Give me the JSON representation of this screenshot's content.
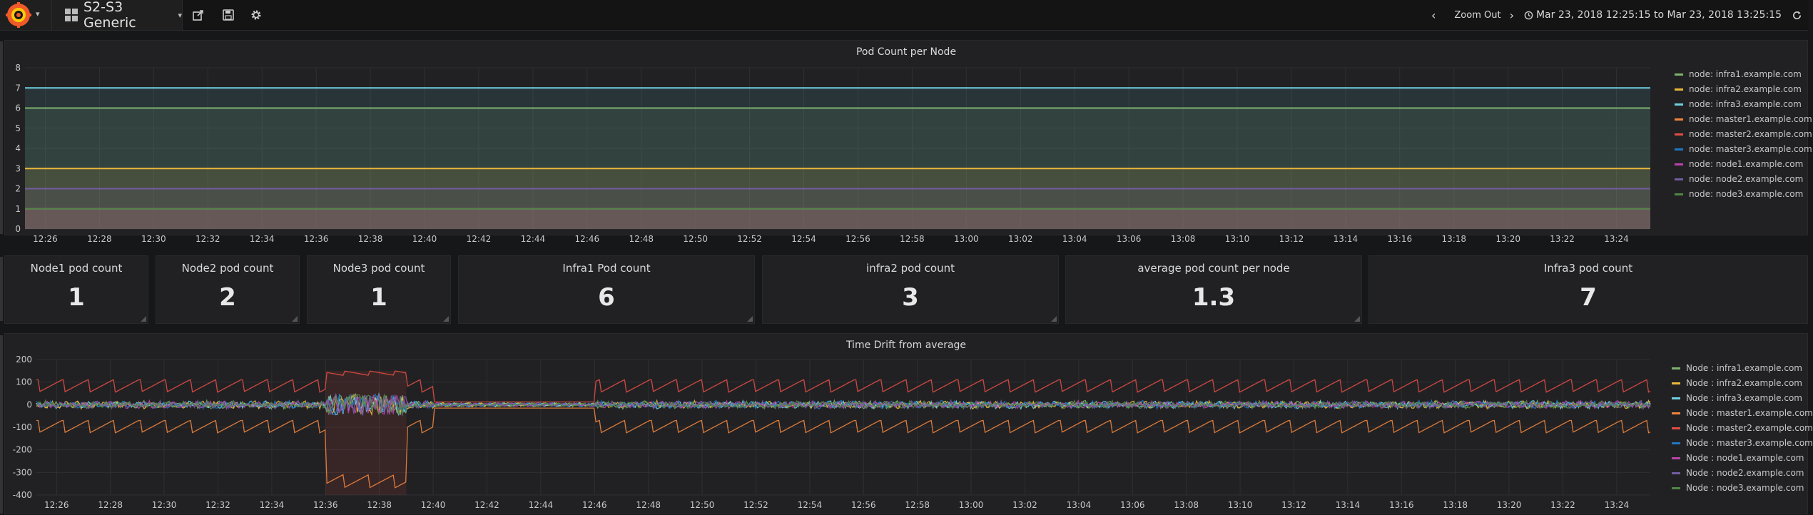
{
  "navbar": {
    "dashboard_title": "S2-S3 Generic",
    "zoom_out_label": "Zoom Out",
    "time_range": "Mar 23, 2018 12:25:15 to Mar 23, 2018 13:25:15"
  },
  "colors": {
    "green": "#7eb26d",
    "yellow": "#eab839",
    "cyan": "#6ed0e0",
    "orange": "#ef843c",
    "red": "#e24d42",
    "blue": "#1f78c1",
    "magenta": "#ba43a9",
    "purple": "#705da0",
    "darkgreen": "#508642"
  },
  "pod_panel": {
    "title": "Pod Count per Node",
    "legend": [
      {
        "label": "node: infra1.example.com",
        "color": "#7eb26d"
      },
      {
        "label": "node: infra2.example.com",
        "color": "#eab839"
      },
      {
        "label": "node: infra3.example.com",
        "color": "#6ed0e0"
      },
      {
        "label": "node: master1.example.com",
        "color": "#ef843c"
      },
      {
        "label": "node: master2.example.com",
        "color": "#e24d42"
      },
      {
        "label": "node: master3.example.com",
        "color": "#1f78c1"
      },
      {
        "label": "node: node1.example.com",
        "color": "#ba43a9"
      },
      {
        "label": "node: node2.example.com",
        "color": "#705da0"
      },
      {
        "label": "node: node3.example.com",
        "color": "#508642"
      }
    ]
  },
  "stats": [
    {
      "title": "Node1 pod count",
      "value": "1"
    },
    {
      "title": "Node2 pod count",
      "value": "2"
    },
    {
      "title": "Node3 pod count",
      "value": "1"
    },
    {
      "title": "Infra1 Pod count",
      "value": "6"
    },
    {
      "title": "infra2 pod count",
      "value": "3"
    },
    {
      "title": "average pod count per node",
      "value": "1.3"
    },
    {
      "title": "Infra3 pod count",
      "value": "7"
    }
  ],
  "drift_panel": {
    "title": "Time Drift from average",
    "legend": [
      {
        "label": "Node : infra1.example.com",
        "color": "#7eb26d"
      },
      {
        "label": "Node : infra2.example.com",
        "color": "#eab839"
      },
      {
        "label": "Node : infra3.example.com",
        "color": "#6ed0e0"
      },
      {
        "label": "Node : master1.example.com",
        "color": "#ef843c"
      },
      {
        "label": "Node : master2.example.com",
        "color": "#e24d42"
      },
      {
        "label": "Node : master3.example.com",
        "color": "#1f78c1"
      },
      {
        "label": "Node : node1.example.com",
        "color": "#ba43a9"
      },
      {
        "label": "Node : node2.example.com",
        "color": "#705da0"
      },
      {
        "label": "Node : node3.example.com",
        "color": "#508642"
      }
    ]
  },
  "chart_data": [
    {
      "type": "area",
      "title": "Pod Count per Node",
      "ylim": [
        0,
        8
      ],
      "y_ticks": [
        "0",
        "1",
        "2",
        "3",
        "4",
        "5",
        "6",
        "7",
        "8"
      ],
      "x_ticks": [
        "12:26",
        "12:28",
        "12:30",
        "12:32",
        "12:34",
        "12:36",
        "12:38",
        "12:40",
        "12:42",
        "12:44",
        "12:46",
        "12:48",
        "12:50",
        "12:52",
        "12:54",
        "12:56",
        "12:58",
        "13:00",
        "13:02",
        "13:04",
        "13:06",
        "13:08",
        "13:10",
        "13:12",
        "13:14",
        "13:16",
        "13:18",
        "13:20",
        "13:22",
        "13:24"
      ],
      "grid": true,
      "legend_position": "right",
      "series": [
        {
          "name": "node: infra1.example.com",
          "value": 6,
          "color": "#7eb26d"
        },
        {
          "name": "node: infra2.example.com",
          "value": 3,
          "color": "#eab839"
        },
        {
          "name": "node: infra3.example.com",
          "value": 7,
          "color": "#6ed0e0"
        },
        {
          "name": "node: master1.example.com",
          "value": 1,
          "color": "#ef843c"
        },
        {
          "name": "node: master2.example.com",
          "value": 1,
          "color": "#e24d42"
        },
        {
          "name": "node: master3.example.com",
          "value": 1,
          "color": "#1f78c1"
        },
        {
          "name": "node: node1.example.com",
          "value": 1,
          "color": "#ba43a9"
        },
        {
          "name": "node: node2.example.com",
          "value": 2,
          "color": "#705da0"
        },
        {
          "name": "node: node3.example.com",
          "value": 1,
          "color": "#508642"
        }
      ]
    },
    {
      "type": "line",
      "title": "Time Drift from average",
      "ylim": [
        -400,
        200
      ],
      "y_ticks": [
        "200",
        "100",
        "0",
        "-100",
        "-200",
        "-300",
        "-400"
      ],
      "x_ticks": [
        "12:26",
        "12:28",
        "12:30",
        "12:32",
        "12:34",
        "12:36",
        "12:38",
        "12:40",
        "12:42",
        "12:44",
        "12:46",
        "12:48",
        "12:50",
        "12:52",
        "12:54",
        "12:56",
        "12:58",
        "13:00",
        "13:02",
        "13:04",
        "13:06",
        "13:08",
        "13:10",
        "13:12",
        "13:14",
        "13:16",
        "13:18",
        "13:20",
        "13:22",
        "13:24"
      ],
      "grid": true,
      "legend_position": "right",
      "series": [
        {
          "name": "Node : master2.example.com",
          "pattern": "sawtooth",
          "min": 50,
          "max": 110,
          "color": "#e24d42"
        },
        {
          "name": "Node : master1.example.com",
          "pattern": "sawtooth",
          "min": -130,
          "max": -70,
          "color": "#ef843c"
        },
        {
          "name": "Node : infra1.example.com",
          "pattern": "noise",
          "min": -20,
          "max": 30,
          "color": "#7eb26d"
        },
        {
          "name": "Node : infra2.example.com",
          "pattern": "noise",
          "min": -20,
          "max": 30,
          "color": "#eab839"
        },
        {
          "name": "Node : infra3.example.com",
          "pattern": "noise",
          "min": -20,
          "max": 30,
          "color": "#6ed0e0"
        },
        {
          "name": "Node : master3.example.com",
          "pattern": "noise",
          "min": -20,
          "max": 30,
          "color": "#1f78c1"
        },
        {
          "name": "Node : node1.example.com",
          "pattern": "noise",
          "min": -20,
          "max": 30,
          "color": "#ba43a9"
        },
        {
          "name": "Node : node2.example.com",
          "pattern": "noise",
          "min": -20,
          "max": 30,
          "color": "#705da0"
        },
        {
          "name": "Node : node3.example.com",
          "pattern": "noise",
          "min": -20,
          "max": 30,
          "color": "#508642"
        }
      ],
      "gap_range": [
        "12:40",
        "12:46"
      ],
      "spike_range": [
        "12:36",
        "12:39"
      ],
      "spike_min": -400,
      "spike_max": 150
    }
  ]
}
